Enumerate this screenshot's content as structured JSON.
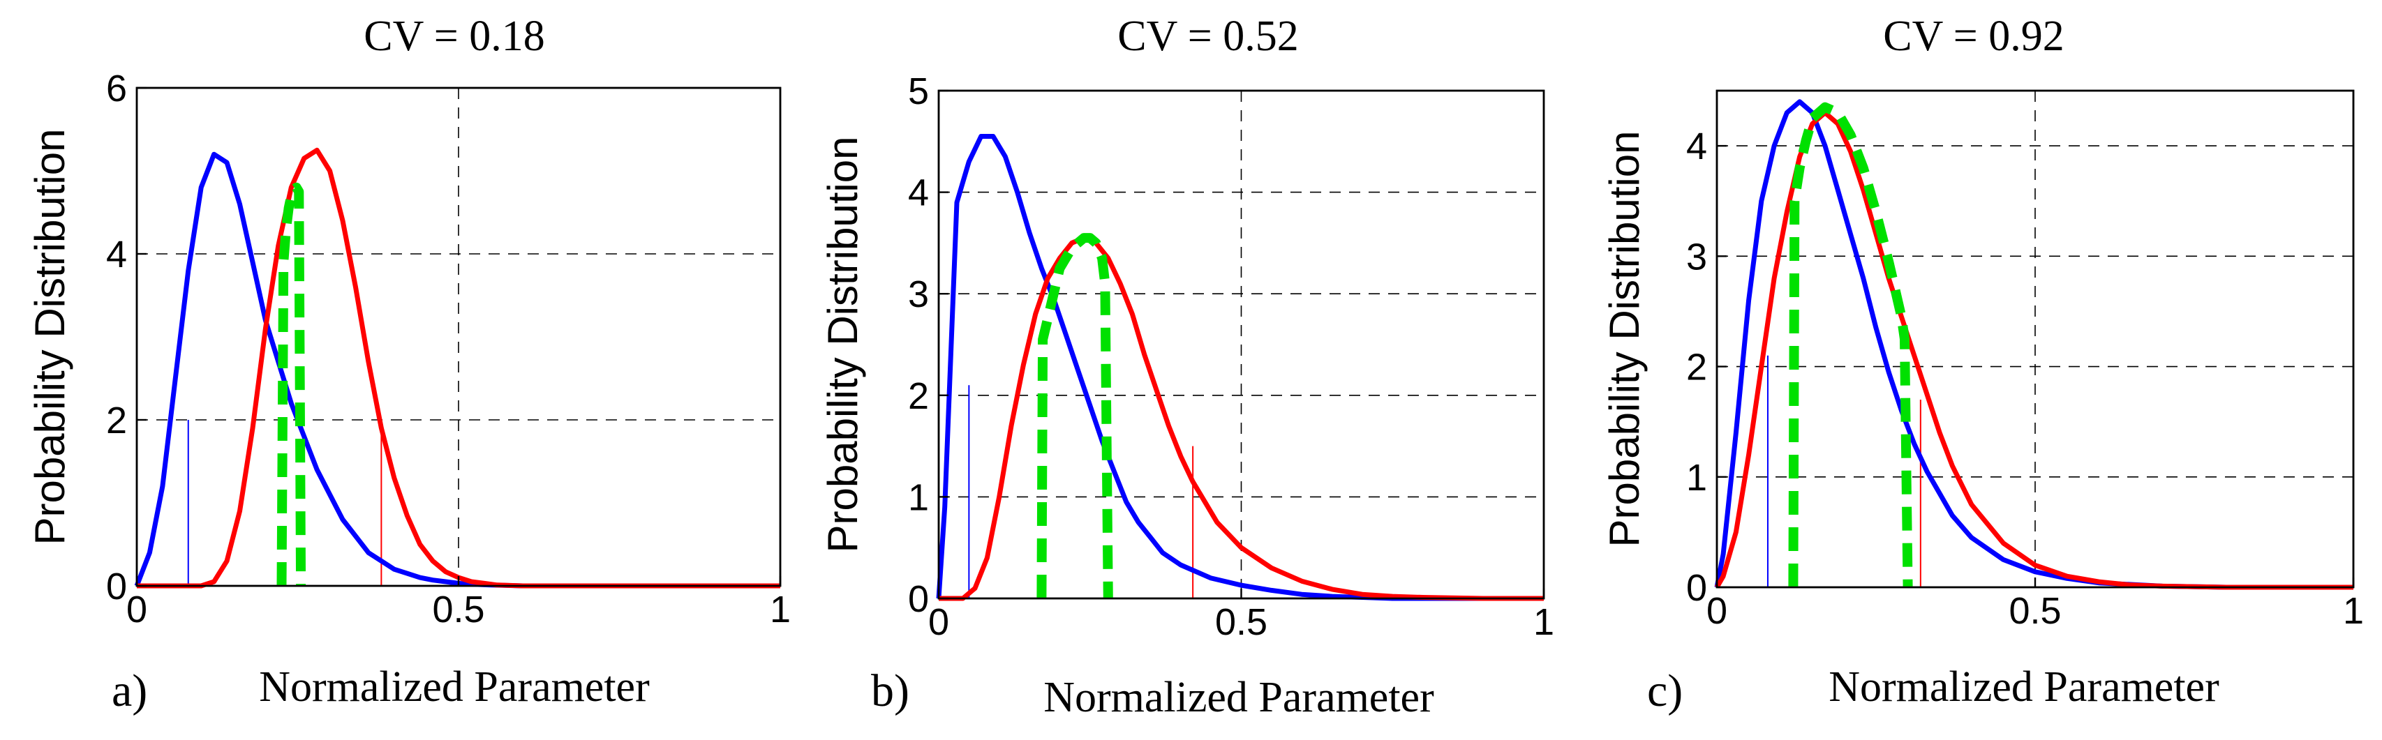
{
  "chart_data": [
    {
      "type": "line",
      "panel_label": "a)",
      "title": "CV = 0.18",
      "xlabel": "Normalized Parameter",
      "ylabel": "Probability Distribution",
      "xlim": [
        0,
        1
      ],
      "ylim": [
        0,
        6
      ],
      "xticks": [
        0,
        0.5,
        1
      ],
      "xtick_labels": [
        "0",
        "0.5",
        "1"
      ],
      "yticks": [
        0,
        2,
        4,
        6
      ],
      "ytick_labels": [
        "0",
        "2",
        "4",
        "6"
      ],
      "grid": true,
      "series": [
        {
          "name": "blue",
          "color": "#0000ff",
          "x": [
            0,
            0.02,
            0.04,
            0.06,
            0.08,
            0.1,
            0.12,
            0.14,
            0.16,
            0.18,
            0.2,
            0.22,
            0.24,
            0.26,
            0.28,
            0.3,
            0.32,
            0.34,
            0.36,
            0.38,
            0.4,
            0.42,
            0.44,
            0.46,
            0.48,
            0.5,
            0.52,
            0.55,
            0.6,
            0.7,
            0.8,
            0.9,
            1.0
          ],
          "y": [
            0,
            0.4,
            1.2,
            2.5,
            3.8,
            4.8,
            5.2,
            5.1,
            4.6,
            3.9,
            3.2,
            2.7,
            2.2,
            1.8,
            1.4,
            1.1,
            0.8,
            0.6,
            0.4,
            0.3,
            0.2,
            0.15,
            0.1,
            0.07,
            0.05,
            0.03,
            0.02,
            0.01,
            0,
            0,
            0,
            0,
            0
          ]
        },
        {
          "name": "red",
          "color": "#ff0000",
          "x": [
            0,
            0.1,
            0.12,
            0.14,
            0.16,
            0.18,
            0.2,
            0.22,
            0.24,
            0.26,
            0.28,
            0.3,
            0.32,
            0.34,
            0.36,
            0.38,
            0.4,
            0.42,
            0.44,
            0.46,
            0.48,
            0.5,
            0.52,
            0.54,
            0.56,
            0.58,
            0.6,
            0.7,
            0.8,
            0.9,
            1.0
          ],
          "y": [
            0,
            0,
            0.05,
            0.3,
            0.9,
            1.9,
            3.1,
            4.1,
            4.8,
            5.15,
            5.25,
            5.0,
            4.4,
            3.6,
            2.7,
            1.9,
            1.3,
            0.85,
            0.5,
            0.3,
            0.17,
            0.1,
            0.05,
            0.03,
            0.01,
            0.005,
            0,
            0,
            0,
            0,
            0
          ]
        },
        {
          "name": "green",
          "color": "#00e000",
          "style": "dashed",
          "x": [
            0.225,
            0.228,
            0.232,
            0.236,
            0.24,
            0.244,
            0.248,
            0.252,
            0.255
          ],
          "y": [
            0,
            3.9,
            4.3,
            4.55,
            4.7,
            4.78,
            4.8,
            4.75,
            0
          ]
        }
      ],
      "markers": [
        {
          "x": 0.08,
          "y": 2.0,
          "color": "#0000ff"
        },
        {
          "x": 0.38,
          "y": 2.0,
          "color": "#ff0000"
        }
      ]
    },
    {
      "type": "line",
      "panel_label": "b)",
      "title": "CV = 0.52",
      "xlabel": "Normalized Parameter",
      "ylabel": "Probability Distribution",
      "xlim": [
        0,
        1
      ],
      "ylim": [
        0,
        5
      ],
      "xticks": [
        0,
        0.5,
        1
      ],
      "xtick_labels": [
        "0",
        "0.5",
        "1"
      ],
      "yticks": [
        0,
        1,
        2,
        3,
        4,
        5
      ],
      "ytick_labels": [
        "0",
        "1",
        "2",
        "3",
        "4",
        "5"
      ],
      "grid": true,
      "series": [
        {
          "name": "blue",
          "color": "#0000ff",
          "x": [
            0,
            0.01,
            0.03,
            0.05,
            0.07,
            0.09,
            0.11,
            0.13,
            0.15,
            0.17,
            0.19,
            0.21,
            0.23,
            0.25,
            0.27,
            0.29,
            0.31,
            0.33,
            0.35,
            0.37,
            0.4,
            0.45,
            0.5,
            0.55,
            0.6,
            0.65,
            0.7,
            0.75,
            0.8,
            0.9,
            1.0
          ],
          "y": [
            0,
            0.9,
            3.9,
            4.3,
            4.55,
            4.55,
            4.35,
            4.0,
            3.6,
            3.25,
            2.95,
            2.6,
            2.25,
            1.9,
            1.55,
            1.25,
            0.95,
            0.75,
            0.6,
            0.45,
            0.33,
            0.2,
            0.13,
            0.08,
            0.04,
            0.02,
            0.01,
            0,
            0,
            0,
            0
          ]
        },
        {
          "name": "red",
          "color": "#ff0000",
          "x": [
            0,
            0.04,
            0.06,
            0.08,
            0.1,
            0.12,
            0.14,
            0.16,
            0.18,
            0.2,
            0.22,
            0.24,
            0.26,
            0.28,
            0.3,
            0.32,
            0.34,
            0.36,
            0.38,
            0.4,
            0.42,
            0.44,
            0.46,
            0.5,
            0.55,
            0.6,
            0.65,
            0.7,
            0.75,
            0.8,
            0.9,
            1.0
          ],
          "y": [
            0,
            0,
            0.1,
            0.4,
            1.0,
            1.7,
            2.3,
            2.8,
            3.15,
            3.35,
            3.5,
            3.55,
            3.5,
            3.35,
            3.1,
            2.8,
            2.4,
            2.05,
            1.7,
            1.4,
            1.15,
            0.95,
            0.75,
            0.5,
            0.3,
            0.17,
            0.09,
            0.04,
            0.02,
            0.01,
            0,
            0
          ]
        },
        {
          "name": "green",
          "color": "#00e000",
          "style": "dashed",
          "x": [
            0.17,
            0.172,
            0.18,
            0.19,
            0.2,
            0.22,
            0.24,
            0.25,
            0.26,
            0.27,
            0.275,
            0.28
          ],
          "y": [
            0,
            2.55,
            2.75,
            3.0,
            3.25,
            3.45,
            3.55,
            3.55,
            3.5,
            3.35,
            3.1,
            0
          ]
        }
      ],
      "markers": [
        {
          "x": 0.05,
          "y": 2.1,
          "color": "#0000ff"
        },
        {
          "x": 0.42,
          "y": 1.5,
          "color": "#ff0000"
        }
      ]
    },
    {
      "type": "line",
      "panel_label": "c)",
      "title": "CV = 0.92",
      "xlabel": "Normalized Parameter",
      "ylabel": "Probability Distribution",
      "xlim": [
        0,
        1
      ],
      "ylim": [
        0,
        4.5
      ],
      "xticks": [
        0,
        0.5,
        1
      ],
      "xtick_labels": [
        "0",
        "0.5",
        "1"
      ],
      "yticks": [
        0,
        1,
        2,
        3,
        4
      ],
      "ytick_labels": [
        "0",
        "1",
        "2",
        "3",
        "4"
      ],
      "grid": true,
      "series": [
        {
          "name": "blue",
          "color": "#0000ff",
          "x": [
            0,
            0.01,
            0.03,
            0.05,
            0.07,
            0.09,
            0.11,
            0.13,
            0.15,
            0.17,
            0.19,
            0.21,
            0.23,
            0.25,
            0.27,
            0.29,
            0.31,
            0.33,
            0.35,
            0.37,
            0.4,
            0.45,
            0.5,
            0.55,
            0.6,
            0.7,
            0.8,
            0.9,
            1.0
          ],
          "y": [
            0,
            0.3,
            1.4,
            2.6,
            3.5,
            4.0,
            4.3,
            4.4,
            4.3,
            4.0,
            3.6,
            3.2,
            2.8,
            2.35,
            1.95,
            1.6,
            1.3,
            1.05,
            0.85,
            0.65,
            0.45,
            0.25,
            0.14,
            0.08,
            0.04,
            0.01,
            0,
            0,
            0
          ]
        },
        {
          "name": "red",
          "color": "#ff0000",
          "x": [
            0,
            0.01,
            0.03,
            0.05,
            0.07,
            0.09,
            0.11,
            0.13,
            0.15,
            0.17,
            0.19,
            0.21,
            0.23,
            0.25,
            0.27,
            0.29,
            0.31,
            0.33,
            0.35,
            0.37,
            0.4,
            0.45,
            0.5,
            0.55,
            0.6,
            0.65,
            0.7,
            0.8,
            0.9,
            1.0
          ],
          "y": [
            0,
            0.1,
            0.5,
            1.2,
            2.0,
            2.8,
            3.4,
            3.9,
            4.2,
            4.3,
            4.2,
            3.95,
            3.6,
            3.2,
            2.8,
            2.45,
            2.1,
            1.75,
            1.4,
            1.1,
            0.75,
            0.4,
            0.2,
            0.1,
            0.05,
            0.02,
            0.01,
            0,
            0,
            0
          ]
        },
        {
          "name": "green",
          "color": "#00e000",
          "style": "dashed",
          "x": [
            0.12,
            0.122,
            0.13,
            0.14,
            0.15,
            0.17,
            0.19,
            0.21,
            0.23,
            0.25,
            0.27,
            0.29,
            0.295,
            0.3
          ],
          "y": [
            0,
            3.5,
            3.8,
            4.05,
            4.25,
            4.35,
            4.3,
            4.1,
            3.8,
            3.4,
            2.95,
            2.45,
            2.25,
            0
          ]
        }
      ],
      "markers": [
        {
          "x": 0.08,
          "y": 2.1,
          "color": "#0000ff"
        },
        {
          "x": 0.32,
          "y": 1.7,
          "color": "#ff0000"
        }
      ]
    }
  ]
}
